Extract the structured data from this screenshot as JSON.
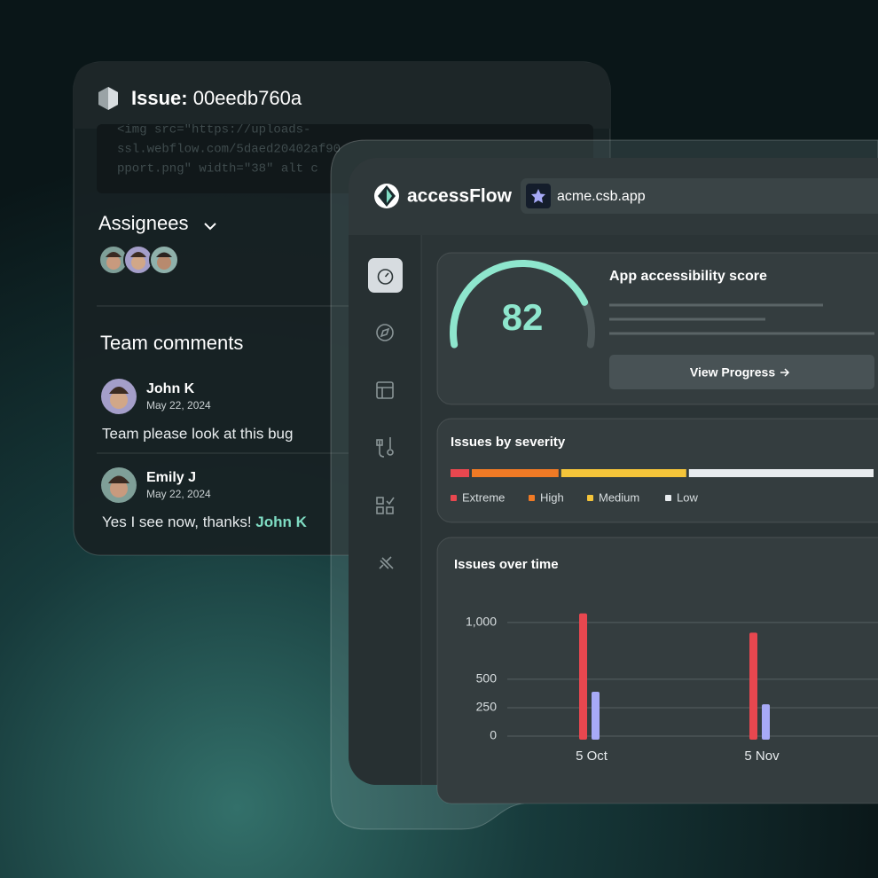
{
  "issue_panel": {
    "title_label": "Issue:",
    "issue_id": "00eedb760a",
    "code_lines": [
      "<img src=\"https://uploads-",
      "ssl.webflow.com/5daed20402af90",
      "pport.png\" width=\"38\" alt c"
    ],
    "assignees_label": "Assignees",
    "comments_title": "Team comments",
    "comments": [
      {
        "author": "John K",
        "date": "May 22, 2024",
        "text": "Team please look at this bug"
      },
      {
        "author": "Emily J",
        "date": "May 22, 2024",
        "text": "Yes I see now, thanks!",
        "mention": "John K"
      }
    ]
  },
  "app": {
    "brand": "accessFlow",
    "url": "acme.csb.app",
    "score_card": {
      "title": "App accessibility score",
      "score": 82,
      "lim": [
        0,
        100
      ],
      "button": "View Progress"
    },
    "severity": {
      "title": "Issues by severity",
      "categories": [
        "Extreme",
        "High",
        "Medium",
        "Low"
      ],
      "values": [
        5,
        21,
        30,
        44
      ],
      "colors": [
        "#e8474f",
        "#f07a25",
        "#f5c53a",
        "#e8ecef"
      ],
      "xlim": [
        0,
        100
      ]
    },
    "chart": {
      "type": "bar",
      "title": "Issues over time",
      "categories": [
        "5 Oct",
        "5 Nov"
      ],
      "series": [
        {
          "color": "#e8474f",
          "values": [
            1080,
            910
          ]
        },
        {
          "color": "#a7aaf7",
          "values": [
            390,
            280
          ]
        }
      ],
      "ylim": [
        0,
        1100
      ],
      "yticks": [
        0,
        250,
        500,
        {
          "value": 1000,
          "label": "1,000"
        }
      ],
      "grid": true
    }
  }
}
